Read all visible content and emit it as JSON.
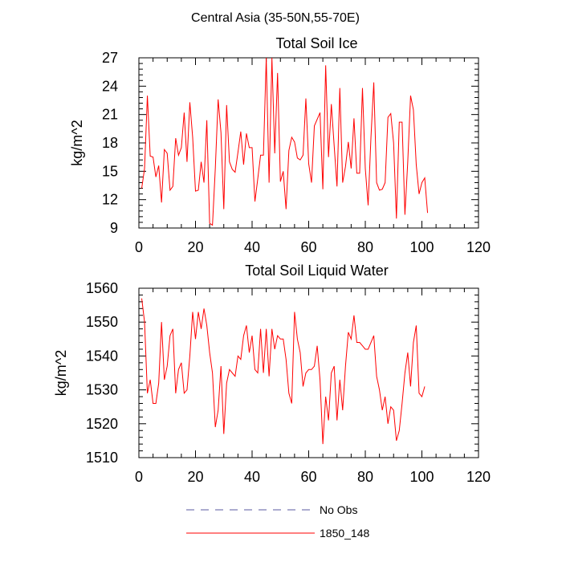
{
  "figure_title": "Central Asia (35-50N,55-70E)",
  "legend": [
    {
      "label": "No Obs",
      "color": "#5a5aa0",
      "style": "dashed"
    },
    {
      "label": "1850_148",
      "color": "#ff0000",
      "style": "solid"
    }
  ],
  "chart_data": [
    {
      "type": "line",
      "title": "Total Soil Ice",
      "xlabel": "",
      "ylabel": "kg/m^2",
      "xlim": [
        0,
        120
      ],
      "ylim": [
        9,
        27
      ],
      "xticks": [
        0,
        20,
        40,
        60,
        80,
        100,
        120
      ],
      "yticks": [
        9,
        12,
        15,
        18,
        21,
        24,
        27
      ],
      "x_start": 1,
      "series": [
        {
          "name": "1850_148",
          "color": "#ff0000",
          "values": [
            13.2,
            15.3,
            23.0,
            16.6,
            16.5,
            14.4,
            15.6,
            11.7,
            17.3,
            16.9,
            13.0,
            13.4,
            18.5,
            16.7,
            17.5,
            21.2,
            16.0,
            22.3,
            18.6,
            12.9,
            13.0,
            16.0,
            13.8,
            20.4,
            9.5,
            9.3,
            15.3,
            22.6,
            19.1,
            11.0,
            22.0,
            16.0,
            15.2,
            14.9,
            17.0,
            19.2,
            15.7,
            19.0,
            17.5,
            17.5,
            11.8,
            14.2,
            16.7,
            16.7,
            27.0,
            13.8,
            27.0,
            16.9,
            25.4,
            13.9,
            15.0,
            11.0,
            17.2,
            18.6,
            18.1,
            16.4,
            16.2,
            16.7,
            22.7,
            15.8,
            13.8,
            19.8,
            20.5,
            21.2,
            13.1,
            26.2,
            16.5,
            22.1,
            17.7,
            13.4,
            23.8,
            13.8,
            15.5,
            18.1,
            15.3,
            20.6,
            14.8,
            14.8,
            23.8,
            15.3,
            11.4,
            18.6,
            24.4,
            13.8,
            13.0,
            13.1,
            13.8,
            20.7,
            21.1,
            18.0,
            10.0,
            20.2,
            20.2,
            10.4,
            16.0,
            23.0,
            21.5,
            15.7,
            12.6,
            13.8,
            14.3,
            10.6
          ]
        }
      ]
    },
    {
      "type": "line",
      "title": "Total Soil Liquid Water",
      "xlabel": "",
      "ylabel": "kg/m^2",
      "xlim": [
        0,
        120
      ],
      "ylim": [
        1510,
        1560
      ],
      "xticks": [
        0,
        20,
        40,
        60,
        80,
        100,
        120
      ],
      "yticks": [
        1510,
        1520,
        1530,
        1540,
        1550,
        1560
      ],
      "x_start": 1,
      "series": [
        {
          "name": "1850_148",
          "color": "#ff0000",
          "values": [
            1557,
            1550,
            1529,
            1533,
            1526,
            1526,
            1532,
            1550,
            1533,
            1537,
            1546,
            1548,
            1529,
            1536,
            1538,
            1529,
            1530,
            1540,
            1553,
            1545,
            1553,
            1548,
            1554,
            1549,
            1541,
            1535,
            1519,
            1524,
            1537,
            1517,
            1532,
            1536,
            1535,
            1534,
            1540,
            1539,
            1546,
            1549,
            1541,
            1546,
            1536,
            1535,
            1548,
            1535,
            1548,
            1534,
            1548,
            1542,
            1546,
            1545,
            1545,
            1539,
            1529,
            1526,
            1553,
            1545,
            1541,
            1531,
            1535,
            1536,
            1536,
            1537,
            1543,
            1533,
            1514,
            1528,
            1521,
            1535,
            1537,
            1521,
            1533,
            1524,
            1537,
            1547,
            1545,
            1552,
            1544,
            1544,
            1543,
            1542,
            1542,
            1544,
            1546,
            1534,
            1530,
            1524,
            1528,
            1520,
            1525,
            1524,
            1515,
            1518,
            1526,
            1535,
            1541,
            1531,
            1544,
            1549,
            1529,
            1528,
            1531
          ]
        }
      ]
    }
  ]
}
